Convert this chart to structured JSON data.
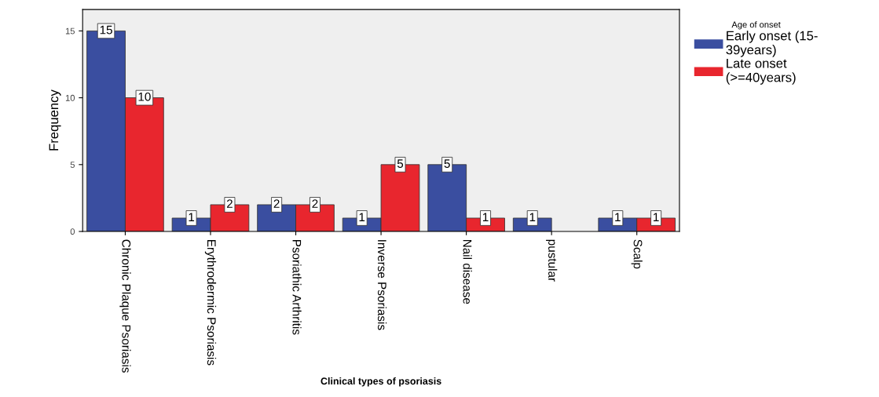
{
  "chart_data": {
    "type": "bar",
    "xlabel": "Clinical types of psoriasis",
    "ylabel": "Frequency",
    "legend_title": "Age of onset",
    "categories": [
      "Chronic Plaque Psoriasis",
      "Erythrodermic Psoriasis",
      "Psoriathic Arthritis",
      "Inverse Psoriasis",
      "Nail disease",
      "pustular",
      "Scalp"
    ],
    "series": [
      {
        "name": "Early onset (15-\n39years)",
        "color": "#3a4ea0",
        "values": [
          15,
          1,
          2,
          1,
          5,
          1,
          1
        ]
      },
      {
        "name": "Late onset\n(>=40years)",
        "color": "#e8262e",
        "values": [
          10,
          2,
          2,
          5,
          1,
          null,
          1
        ]
      }
    ],
    "ylim": [
      0,
      16.6
    ],
    "yticks": [
      0,
      5,
      10,
      15
    ],
    "grid": false,
    "legend": "top right",
    "data_labels": true
  }
}
